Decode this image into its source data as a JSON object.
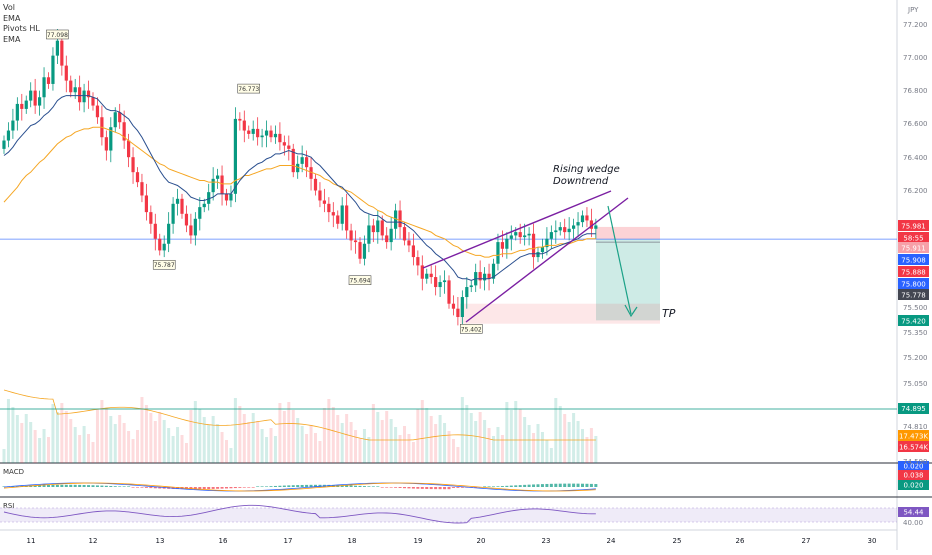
{
  "chart_data": {
    "type": "candlestick",
    "symbol_currency": "JPY",
    "indicators_legend": [
      "Vol",
      "EMA",
      "Pivots HL",
      "EMA"
    ],
    "x_ticks": [
      "11",
      "12",
      "13",
      "16",
      "17",
      "18",
      "19",
      "20",
      "23",
      "24",
      "25",
      "26",
      "27",
      "30"
    ],
    "y_ticks": [
      "77.200",
      "77.000",
      "76.800",
      "76.600",
      "76.400",
      "76.200",
      "75.500",
      "75.350",
      "75.200",
      "75.050",
      "74.900",
      "74.810",
      "74.590"
    ],
    "price_range": [
      75.3,
      77.3
    ],
    "pivot_labels": [
      "77.098",
      "76.773",
      "75.787",
      "75.694",
      "75.402"
    ],
    "closes": [
      76.5,
      76.56,
      76.62,
      76.72,
      76.69,
      76.74,
      76.8,
      76.71,
      76.76,
      76.88,
      76.84,
      77.01,
      77.1,
      76.95,
      76.86,
      76.79,
      76.82,
      76.73,
      76.8,
      76.76,
      76.71,
      76.64,
      76.52,
      76.44,
      76.58,
      76.67,
      76.61,
      76.5,
      76.4,
      76.31,
      76.25,
      76.17,
      76.07,
      76.0,
      75.91,
      75.84,
      75.88,
      76.0,
      76.12,
      76.15,
      76.06,
      75.99,
      75.93,
      76.03,
      76.1,
      76.12,
      76.19,
      76.27,
      76.29,
      76.18,
      76.14,
      76.18,
      76.63,
      76.62,
      76.56,
      76.54,
      76.57,
      76.52,
      76.53,
      76.56,
      76.52,
      76.54,
      76.49,
      76.47,
      76.45,
      76.31,
      76.36,
      76.4,
      76.34,
      76.27,
      76.2,
      76.14,
      76.12,
      76.07,
      76.05,
      76.0,
      76.11,
      75.96,
      75.9,
      75.89,
      75.79,
      75.88,
      75.99,
      75.95,
      76.02,
      75.93,
      75.89,
      75.97,
      76.08,
      75.98,
      75.9,
      75.87,
      75.8,
      75.75,
      75.67,
      75.7,
      75.68,
      75.62,
      75.65,
      75.66,
      75.52,
      75.49,
      75.44,
      75.56,
      75.62,
      75.63,
      75.71,
      75.66,
      75.7,
      75.67,
      75.76,
      75.89,
      75.85,
      75.91,
      75.93,
      75.95,
      75.92,
      75.93,
      75.94,
      75.8,
      75.83,
      75.86,
      75.91,
      75.95,
      75.96,
      75.98,
      75.95,
      75.97,
      75.99,
      76.01,
      76.05,
      76.02,
      75.97,
      75.99
    ],
    "ema_fast": [
      76.41,
      76.43,
      76.46,
      76.5,
      76.53,
      76.56,
      76.59,
      76.6,
      76.62,
      76.65,
      76.67,
      76.7,
      76.74,
      76.76,
      76.77,
      76.77,
      76.77,
      76.77,
      76.77,
      76.77,
      76.76,
      76.75,
      76.72,
      76.69,
      76.68,
      76.68,
      76.67,
      76.65,
      76.63,
      76.59,
      76.56,
      76.52,
      76.47,
      76.42,
      76.37,
      76.32,
      76.28,
      76.25,
      76.24,
      76.23,
      76.21,
      76.19,
      76.16,
      76.15,
      76.14,
      76.14,
      76.15,
      76.16,
      76.18,
      76.18,
      76.18,
      76.18,
      76.22,
      76.26,
      76.29,
      76.32,
      76.34,
      76.36,
      76.37,
      76.39,
      76.4,
      76.42,
      76.42,
      76.43,
      76.44,
      76.43,
      76.42,
      76.42,
      76.41,
      76.4,
      76.37,
      76.35,
      76.32,
      76.29,
      76.26,
      76.23,
      76.22,
      76.19,
      76.16,
      76.13,
      76.09,
      76.07,
      76.06,
      76.05,
      76.05,
      76.03,
      76.01,
      76.01,
      76.01,
      76.01,
      76.0,
      75.98,
      75.96,
      75.93,
      75.9,
      75.87,
      75.85,
      75.82,
      75.8,
      75.78,
      75.75,
      75.72,
      75.68,
      75.67,
      75.67,
      75.66,
      75.67,
      75.67,
      75.67,
      75.67,
      75.68,
      75.7,
      75.72,
      75.74,
      75.76,
      75.78,
      75.8,
      75.81,
      75.82,
      75.82,
      75.82,
      75.82,
      75.83,
      75.85,
      75.86,
      75.87,
      75.88,
      75.89,
      75.9,
      75.91,
      75.93,
      75.94,
      75.94,
      75.94
    ],
    "ema_slow": [
      76.13,
      76.16,
      76.19,
      76.22,
      76.26,
      76.29,
      76.31,
      76.34,
      76.37,
      76.39,
      76.42,
      76.45,
      76.48,
      76.5,
      76.52,
      76.53,
      76.55,
      76.56,
      76.57,
      76.57,
      76.58,
      76.58,
      76.58,
      76.57,
      76.56,
      76.55,
      76.54,
      76.52,
      76.5,
      76.48,
      76.46,
      76.44,
      76.42,
      76.4,
      76.38,
      76.36,
      76.35,
      76.33,
      76.32,
      76.31,
      76.3,
      76.29,
      76.28,
      76.27,
      76.26,
      76.26,
      76.25,
      76.25,
      76.25,
      76.24,
      76.24,
      76.24,
      76.26,
      76.27,
      76.29,
      76.29,
      76.3,
      76.31,
      76.32,
      76.33,
      76.33,
      76.34,
      76.35,
      76.35,
      76.35,
      76.35,
      76.34,
      76.33,
      76.32,
      76.31,
      76.3,
      76.29,
      76.27,
      76.26,
      76.24,
      76.23,
      76.21,
      76.2,
      76.19,
      76.17,
      76.15,
      76.13,
      76.11,
      76.1,
      76.08,
      76.07,
      76.05,
      76.04,
      76.03,
      76.02,
      76.01,
      76.0,
      75.99,
      75.98,
      75.97,
      75.96,
      75.95,
      75.93,
      75.92,
      75.91,
      75.89,
      75.87,
      75.86,
      75.84,
      75.83,
      75.82,
      75.81,
      75.81,
      75.8,
      75.8,
      75.81,
      75.81,
      75.82,
      75.82,
      75.82,
      75.83,
      75.84,
      75.84,
      75.85,
      75.85,
      75.86,
      75.86,
      75.87,
      75.87,
      75.87,
      75.88,
      75.88,
      75.88,
      75.89,
      75.9,
      75.9,
      75.91,
      75.91,
      75.91
    ],
    "pattern": {
      "name": "Rising wedge",
      "bias": "Downtrend",
      "tp_label": "TP",
      "upper_line": [
        [
          75.73,
          76.19
        ],
        [
          0,
          0
        ]
      ],
      "lower_line": [
        [
          75.4,
          76.18
        ],
        [
          0,
          0
        ]
      ]
    },
    "trade_box": {
      "entry": 75.908,
      "stop": 75.981,
      "target": 75.42
    },
    "support_zone": [
      75.4,
      75.52
    ],
    "horizontal_line": 75.908,
    "price_labels": [
      {
        "value": "75.981",
        "color": "#f23645"
      },
      {
        "value": "58:55",
        "color": "#f23645"
      },
      {
        "value": "75.911",
        "color": "#f7a0a8"
      },
      {
        "value": "75.908",
        "color": "#2962ff"
      },
      {
        "value": "75.888",
        "color": "#f23645"
      },
      {
        "value": "75.800",
        "color": "#2962ff"
      },
      {
        "value": "75.778",
        "color": "#434651"
      },
      {
        "value": "75.420",
        "color": "#089981"
      }
    ],
    "volume_level_label": {
      "value": "74.895",
      "color": "#089981"
    },
    "volume_labels": [
      {
        "value": "17.473K",
        "color": "#ff9800"
      },
      {
        "value": "16.574K",
        "color": "#f23645"
      }
    ],
    "macd": {
      "label": "MACD",
      "values_labels": [
        {
          "value": "0.020",
          "color": "#2962ff"
        },
        {
          "value": "0.038",
          "color": "#f23645"
        },
        {
          "value": "0.020",
          "color": "#089981"
        }
      ]
    },
    "rsi": {
      "label": "RSI",
      "value_label": {
        "value": "54.44",
        "color": "#7e57c2"
      },
      "tick_40": "40.00"
    }
  },
  "colors": {
    "up": "#089981",
    "down": "#f23645",
    "ema_fast": "#2a4f8f",
    "ema_slow": "#f5a623",
    "wedge": "#7b1fa2",
    "arrow": "#1aa187",
    "hline": "#2962ff"
  }
}
